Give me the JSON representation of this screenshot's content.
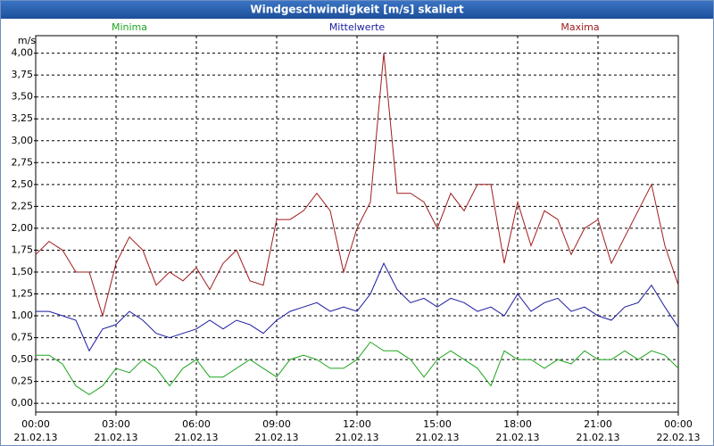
{
  "chart_data": {
    "type": "line",
    "title": "Windgeschwindigkeit [m/s] skaliert",
    "y_label": "m/s",
    "x": [
      0,
      0.5,
      1,
      1.5,
      2,
      2.5,
      3,
      3.5,
      4,
      4.5,
      5,
      5.5,
      6,
      6.5,
      7,
      7.5,
      8,
      8.5,
      9,
      9.5,
      10,
      10.5,
      11,
      11.5,
      12,
      12.5,
      13,
      13.5,
      14,
      14.5,
      15,
      15.5,
      16,
      16.5,
      17,
      17.5,
      18,
      18.5,
      19,
      19.5,
      20,
      20.5,
      21,
      21.5,
      22,
      22.5,
      23,
      23.5,
      24
    ],
    "series": [
      {
        "name": "Minima",
        "color": "#1fa51f",
        "values": [
          0.55,
          0.55,
          0.45,
          0.2,
          0.1,
          0.2,
          0.4,
          0.35,
          0.5,
          0.4,
          0.2,
          0.4,
          0.5,
          0.3,
          0.3,
          0.4,
          0.5,
          0.4,
          0.3,
          0.5,
          0.55,
          0.5,
          0.4,
          0.4,
          0.5,
          0.7,
          0.6,
          0.6,
          0.5,
          0.3,
          0.5,
          0.6,
          0.5,
          0.4,
          0.2,
          0.6,
          0.5,
          0.5,
          0.4,
          0.5,
          0.45,
          0.6,
          0.5,
          0.5,
          0.6,
          0.5,
          0.6,
          0.55,
          0.4
        ]
      },
      {
        "name": "Mittelwerte",
        "color": "#1a1aa0",
        "values": [
          1.05,
          1.05,
          1.0,
          0.95,
          0.6,
          0.85,
          0.9,
          1.05,
          0.95,
          0.8,
          0.75,
          0.8,
          0.85,
          0.95,
          0.85,
          0.95,
          0.9,
          0.8,
          0.95,
          1.05,
          1.1,
          1.15,
          1.05,
          1.1,
          1.05,
          1.25,
          1.6,
          1.3,
          1.15,
          1.2,
          1.1,
          1.2,
          1.15,
          1.05,
          1.1,
          1.0,
          1.25,
          1.05,
          1.15,
          1.2,
          1.05,
          1.1,
          1.0,
          0.95,
          1.1,
          1.15,
          1.35,
          1.1,
          0.87
        ]
      },
      {
        "name": "Maxima",
        "color": "#a01c1c",
        "values": [
          1.7,
          1.85,
          1.75,
          1.5,
          1.5,
          1.0,
          1.6,
          1.9,
          1.75,
          1.35,
          1.5,
          1.4,
          1.55,
          1.3,
          1.6,
          1.75,
          1.4,
          1.35,
          2.1,
          2.1,
          2.2,
          2.4,
          2.2,
          1.5,
          2.0,
          2.3,
          4.0,
          2.4,
          2.4,
          2.3,
          2.0,
          2.4,
          2.2,
          2.5,
          2.5,
          1.6,
          2.3,
          1.8,
          2.2,
          2.1,
          1.7,
          2.0,
          2.1,
          1.6,
          1.9,
          2.2,
          2.5,
          1.8,
          1.35
        ]
      }
    ],
    "xlim": [
      0,
      24
    ],
    "xticks": [
      {
        "value": 0,
        "label": "00:00"
      },
      {
        "value": 3,
        "label": "03:00"
      },
      {
        "value": 6,
        "label": "06:00"
      },
      {
        "value": 9,
        "label": "09:00"
      },
      {
        "value": 12,
        "label": "12:00"
      },
      {
        "value": 15,
        "label": "15:00"
      },
      {
        "value": 18,
        "label": "18:00"
      },
      {
        "value": 21,
        "label": "21:00"
      },
      {
        "value": 24,
        "label": "00:00"
      }
    ],
    "xtick_dates": [
      "21.02.13",
      "21.02.13",
      "21.02.13",
      "21.02.13",
      "21.02.13",
      "21.02.13",
      "21.02.13",
      "21.02.13",
      "22.02.13"
    ],
    "ylim": [
      -0.1,
      4.2
    ],
    "yticks": [
      {
        "value": 0,
        "label": "0,00"
      },
      {
        "value": 0.25,
        "label": "0,25"
      },
      {
        "value": 0.5,
        "label": "0,50"
      },
      {
        "value": 0.75,
        "label": "0,75"
      },
      {
        "value": 1,
        "label": "1,00"
      },
      {
        "value": 1.25,
        "label": "1,25"
      },
      {
        "value": 1.5,
        "label": "1,50"
      },
      {
        "value": 1.75,
        "label": "1,75"
      },
      {
        "value": 2,
        "label": "2,00"
      },
      {
        "value": 2.25,
        "label": "2,25"
      },
      {
        "value": 2.5,
        "label": "2,50"
      },
      {
        "value": 2.75,
        "label": "2,75"
      },
      {
        "value": 3,
        "label": "3,00"
      },
      {
        "value": 3.25,
        "label": "3,25"
      },
      {
        "value": 3.5,
        "label": "3,50"
      },
      {
        "value": 3.75,
        "label": "3,75"
      },
      {
        "value": 4,
        "label": "4,00"
      }
    ],
    "grid": true
  }
}
